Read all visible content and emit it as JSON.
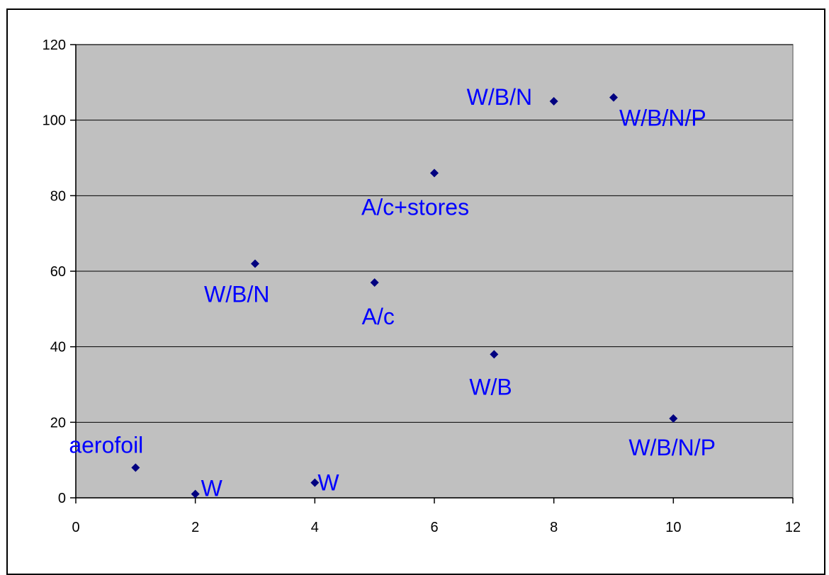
{
  "chart_data": {
    "type": "scatter",
    "title": "",
    "xlabel": "",
    "ylabel": "",
    "xlim": [
      0,
      12
    ],
    "ylim": [
      0,
      120
    ],
    "x_ticks": [
      0,
      2,
      4,
      6,
      8,
      10,
      12
    ],
    "y_ticks": [
      0,
      20,
      40,
      60,
      80,
      100,
      120
    ],
    "grid": "horizontal",
    "legend": "none",
    "colors": {
      "plot_area": "#c0c0c0",
      "marker": "#000080",
      "label": "#0000ff",
      "gridline": "#000000"
    },
    "points": [
      {
        "x": 1,
        "y": 8,
        "label": "aerofoil"
      },
      {
        "x": 2,
        "y": 1,
        "label": "W"
      },
      {
        "x": 3,
        "y": 62,
        "label": "W/B/N"
      },
      {
        "x": 4,
        "y": 4,
        "label": "W"
      },
      {
        "x": 5,
        "y": 57,
        "label": "A/c"
      },
      {
        "x": 6,
        "y": 86,
        "label": "A/c+stores"
      },
      {
        "x": 7,
        "y": 38,
        "label": "W/B"
      },
      {
        "x": 8,
        "y": 105,
        "label": "W/B/N"
      },
      {
        "x": 9,
        "y": 106,
        "label": "W/B/N/P"
      },
      {
        "x": 10,
        "y": 21,
        "label": "W/B/N/P"
      }
    ]
  }
}
